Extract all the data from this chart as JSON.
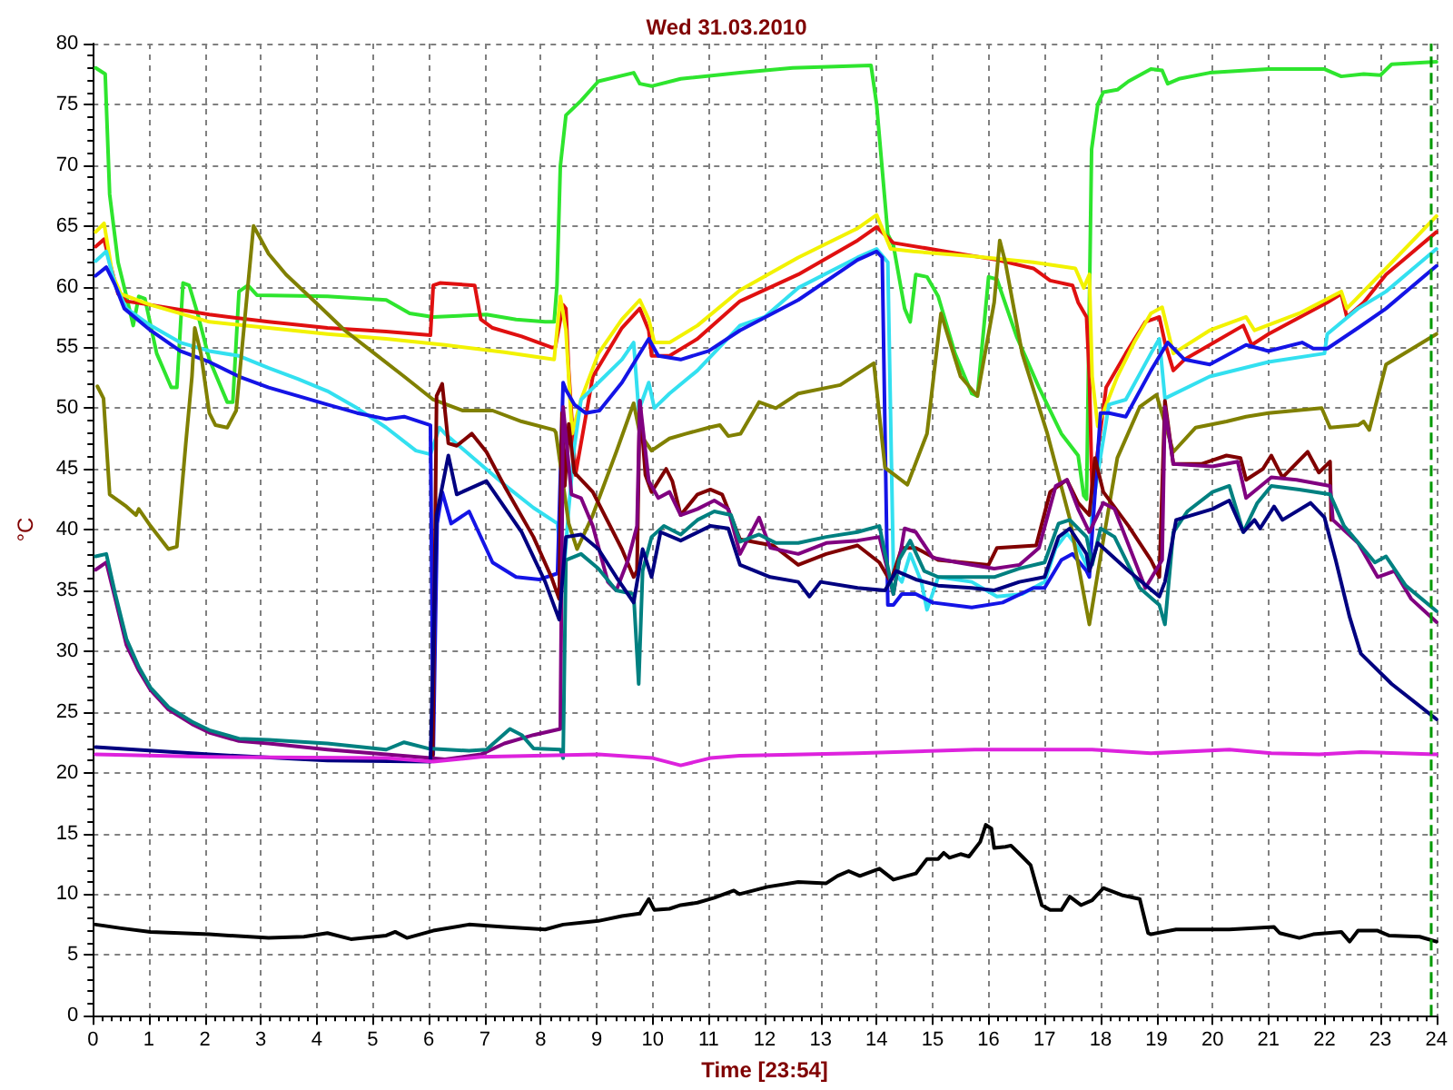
{
  "chart_data": {
    "type": "line",
    "title": "Wed 31.03.2010",
    "xlabel": "Time [23:54]",
    "ylabel": "°C",
    "xlim": [
      0,
      24
    ],
    "xticks": [
      0,
      1,
      2,
      3,
      4,
      5,
      6,
      7,
      8,
      9,
      10,
      11,
      12,
      13,
      14,
      15,
      16,
      17,
      18,
      19,
      20,
      21,
      22,
      23,
      24
    ],
    "ylim": [
      0,
      80
    ],
    "yticks": [
      0,
      5,
      10,
      15,
      20,
      25,
      30,
      35,
      40,
      45,
      50,
      55,
      60,
      65,
      70,
      75,
      80
    ],
    "grid": true,
    "marker": "none",
    "ref_lines": [
      {
        "axis": "x",
        "value": 23.9,
        "color": "#009900",
        "line_style": "dashed"
      }
    ],
    "series": [
      {
        "color": "#2ee52e",
        "x": [
          0.05,
          0.22,
          0.3,
          0.45,
          0.6,
          0.72,
          0.82,
          0.93,
          1.14,
          1.4,
          1.5,
          1.61,
          1.72,
          1.87,
          2.08,
          2.4,
          2.5,
          2.61,
          2.77,
          2.93,
          4.19,
          5.24,
          5.66,
          6.08,
          7.03,
          7.56,
          8.08,
          8.24,
          8.29,
          8.35,
          8.45,
          8.72,
          9.03,
          9.66,
          9.77,
          9.98,
          10.5,
          11.56,
          12.5,
          13.9,
          14.0,
          14.2,
          14.3,
          14.5,
          14.6,
          14.7,
          14.9,
          15.1,
          15.4,
          15.7,
          15.8,
          16.0,
          16.15,
          16.5,
          16.9,
          17.3,
          17.6,
          17.7,
          17.75,
          17.84,
          17.95,
          18.05,
          18.3,
          18.5,
          18.9,
          19.1,
          19.2,
          19.4,
          19.95,
          21,
          22,
          22.3,
          22.7,
          23,
          23.2,
          24
        ],
        "values": [
          78,
          77.5,
          67.6,
          62,
          59.2,
          56.8,
          59.2,
          59,
          54.5,
          51.7,
          51.7,
          60.3,
          60.1,
          57.8,
          54,
          50.5,
          50.5,
          59.6,
          60.1,
          59.3,
          59.2,
          58.9,
          57.8,
          57.5,
          57.7,
          57.3,
          57.1,
          57.1,
          60.1,
          69.9,
          74.1,
          75.3,
          76.9,
          77.6,
          76.7,
          76.5,
          77.1,
          77.6,
          78,
          78.2,
          75,
          64.3,
          63.4,
          58.2,
          57.1,
          61,
          60.8,
          59.2,
          54.5,
          51.2,
          51,
          60.8,
          60.6,
          55.9,
          51.7,
          47.9,
          46.1,
          42.8,
          42.5,
          71.3,
          75,
          76,
          76.2,
          76.9,
          77.9,
          77.8,
          76.7,
          77.1,
          77.6,
          77.9,
          77.9,
          77.3,
          77.5,
          77.4,
          78.3,
          78.5
        ]
      },
      {
        "color": "#e01010",
        "x": [
          0.05,
          0.2,
          0.3,
          0.45,
          0.6,
          1.03,
          2.08,
          3.14,
          4.19,
          5.24,
          6.03,
          6.08,
          6.2,
          6.82,
          6.93,
          7.14,
          7.66,
          8.19,
          8.26,
          8.4,
          8.45,
          8.5,
          8.62,
          8.93,
          9.45,
          9.77,
          9.93,
          9.98,
          10.3,
          10.8,
          11.56,
          12.6,
          13.66,
          14.0,
          14.3,
          15.1,
          16.15,
          16.8,
          17.1,
          17.5,
          17.6,
          17.75,
          17.8,
          17.85,
          18.1,
          18.45,
          18.8,
          19.05,
          19.15,
          19.3,
          19.5,
          19.95,
          20.55,
          20.7,
          21.0,
          22.05,
          22.3,
          22.4,
          22.7,
          23.1,
          24
        ],
        "values": [
          63.3,
          63.9,
          62,
          59.4,
          58.8,
          58.5,
          57.7,
          57.1,
          56.6,
          56.3,
          56,
          60.1,
          60.3,
          60.1,
          57.3,
          56.6,
          55.9,
          55,
          55,
          58.5,
          58.2,
          53.1,
          44.5,
          52.6,
          56.6,
          58.2,
          56.4,
          54.3,
          54.3,
          55.7,
          58.8,
          61,
          63.8,
          64.9,
          63.6,
          63,
          62.2,
          61.5,
          60.5,
          60.1,
          58.7,
          57.5,
          52.6,
          43,
          51.7,
          54.5,
          57.1,
          57.5,
          55.4,
          53.1,
          54,
          55.2,
          56.8,
          55.2,
          56.1,
          58.7,
          59.4,
          57.5,
          58.7,
          61,
          64.5
        ]
      },
      {
        "color": "#f2f200",
        "x": [
          0.05,
          0.2,
          0.35,
          0.5,
          1.03,
          2.08,
          3.14,
          4.19,
          5.24,
          6.29,
          7.35,
          8.24,
          8.35,
          8.45,
          8.56,
          8.72,
          9.03,
          9.45,
          9.77,
          9.93,
          10.03,
          10.3,
          10.8,
          11.56,
          12.6,
          13.66,
          14.0,
          14.25,
          14.65,
          15.7,
          16.8,
          17.55,
          17.7,
          17.8,
          17.85,
          17.95,
          18.3,
          18.6,
          18.9,
          19.1,
          19.3,
          19.95,
          20.6,
          20.75,
          21.55,
          22.3,
          22.4,
          23.1,
          24
        ],
        "values": [
          64.5,
          65.2,
          61,
          59.4,
          58.5,
          57.1,
          56.6,
          56.1,
          55.7,
          55.2,
          54.6,
          54,
          59.2,
          56.4,
          47.9,
          50.7,
          54.5,
          57.3,
          58.9,
          57.3,
          55.4,
          55.4,
          56.8,
          59.7,
          62.4,
          64.8,
          65.9,
          63.1,
          62.9,
          62.5,
          62,
          61.5,
          59.9,
          61,
          52.6,
          48.5,
          52.6,
          55.4,
          57.8,
          58.3,
          54.5,
          56.4,
          57.5,
          56.4,
          57.8,
          59.6,
          58.2,
          61.5,
          65.8
        ]
      },
      {
        "color": "#33e0f0",
        "x": [
          0.05,
          0.24,
          0.4,
          0.6,
          1.03,
          1.56,
          2.08,
          2.61,
          3.14,
          3.66,
          4.19,
          4.72,
          5.24,
          5.77,
          6.03,
          6.19,
          6.29,
          6.82,
          7.35,
          7.87,
          8.3,
          8.4,
          8.5,
          8.6,
          8.72,
          9.03,
          9.45,
          9.66,
          9.75,
          9.93,
          10.03,
          10.3,
          10.8,
          11.56,
          12.0,
          12.6,
          13.66,
          14.0,
          14.2,
          14.3,
          14.45,
          14.6,
          14.8,
          14.9,
          15.1,
          15.7,
          16.15,
          16.6,
          17.0,
          17.2,
          17.4,
          17.6,
          17.8,
          17.85,
          18.15,
          18.45,
          18.9,
          19.05,
          19.15,
          19.95,
          21.0,
          22.0,
          22.05,
          22.6,
          23.1,
          24
        ],
        "values": [
          62.1,
          62.9,
          60.1,
          58.2,
          56.8,
          55.4,
          54.7,
          54.3,
          53.3,
          52.4,
          51.4,
          50,
          48.4,
          46.5,
          46.2,
          48.4,
          47.9,
          45.8,
          43.7,
          41.8,
          40.5,
          35.7,
          41.7,
          46.8,
          50.7,
          52.1,
          54,
          55.4,
          49.8,
          52.1,
          50,
          51.2,
          53.1,
          56.8,
          57.5,
          59.9,
          62.4,
          63.1,
          62,
          36.6,
          35.7,
          38,
          35.7,
          33.4,
          36.1,
          35.7,
          34.5,
          34.7,
          35.7,
          38.5,
          39.7,
          38.5,
          36.6,
          41.7,
          50.3,
          50.7,
          54.5,
          55.7,
          50.8,
          52.6,
          53.8,
          54.5,
          56.1,
          58.2,
          59.6,
          63.1
        ]
      },
      {
        "color": "#1414e6",
        "x": [
          0.05,
          0.24,
          0.4,
          0.56,
          1.03,
          1.56,
          2.08,
          2.61,
          3.14,
          3.66,
          4.19,
          4.72,
          5.24,
          5.56,
          6.03,
          6.08,
          6.15,
          6.24,
          6.4,
          6.72,
          7.14,
          7.56,
          7.98,
          8.3,
          8.4,
          8.45,
          8.6,
          8.8,
          9.05,
          9.45,
          9.93,
          10.1,
          10.5,
          11.0,
          11.56,
          12.6,
          13.66,
          14.0,
          14.1,
          14.2,
          14.3,
          14.45,
          14.7,
          15.0,
          15.7,
          16.25,
          16.8,
          17.0,
          17.3,
          17.5,
          17.75,
          17.8,
          17.85,
          18.0,
          18.15,
          18.45,
          18.9,
          19.2,
          19.5,
          19.95,
          20.6,
          21.0,
          21.6,
          21.8,
          22.05,
          22.6,
          23.1,
          24
        ],
        "values": [
          60.9,
          61.6,
          60.1,
          58.2,
          56.4,
          54.7,
          53.8,
          52.6,
          51.7,
          51,
          50.3,
          49.6,
          49.1,
          49.3,
          48.6,
          21.5,
          40.5,
          43.1,
          40.5,
          41.5,
          37.3,
          36.1,
          35.9,
          36.4,
          52.1,
          51.5,
          50.3,
          49.6,
          49.8,
          52.1,
          55.7,
          54.3,
          54,
          54.7,
          56.4,
          58.9,
          62.2,
          62.9,
          62.4,
          33.8,
          33.8,
          34.7,
          34.7,
          34,
          33.6,
          34,
          35.2,
          35.2,
          37.5,
          38,
          36.6,
          36.1,
          39.6,
          49.6,
          49.6,
          49.3,
          53.1,
          55.4,
          54,
          53.6,
          55.2,
          54.7,
          55.4,
          54.9,
          54.9,
          56.6,
          58.2,
          61.7
        ]
      },
      {
        "color": "#808000",
        "x": [
          0.08,
          0.19,
          0.3,
          0.6,
          0.77,
          0.82,
          1.03,
          1.35,
          1.5,
          1.66,
          1.77,
          1.82,
          1.93,
          2.08,
          2.19,
          2.4,
          2.56,
          2.87,
          3.14,
          3.45,
          3.98,
          4.5,
          5.03,
          5.56,
          6.08,
          6.61,
          7.14,
          7.66,
          8.24,
          8.27,
          8.5,
          8.65,
          8.93,
          9.35,
          9.66,
          9.77,
          9.98,
          10.3,
          10.6,
          11.0,
          11.2,
          11.35,
          11.57,
          11.9,
          12.2,
          12.6,
          13.35,
          13.95,
          14.15,
          14.55,
          14.9,
          15.15,
          15.5,
          15.8,
          16.1,
          16.2,
          16.3,
          16.6,
          17.05,
          17.45,
          17.8,
          18.0,
          18.3,
          18.7,
          19.0,
          19.3,
          19.7,
          20.25,
          20.6,
          21.0,
          21.95,
          22.1,
          22.6,
          22.7,
          22.8,
          23.1,
          24
        ],
        "values": [
          51.8,
          50.8,
          42.9,
          41.9,
          41.2,
          41.7,
          40.3,
          38.4,
          38.6,
          47.1,
          52.6,
          56.6,
          54.5,
          49.6,
          48.6,
          48.4,
          49.8,
          65,
          62.7,
          61,
          58.7,
          56.4,
          54.5,
          52.6,
          50.7,
          49.8,
          49.8,
          48.9,
          48.2,
          48,
          40.5,
          38.4,
          41.2,
          46.4,
          50.4,
          47.9,
          46.5,
          47.5,
          47.9,
          48.4,
          48.6,
          47.7,
          47.9,
          50.5,
          50,
          51.2,
          51.9,
          53.7,
          45.1,
          43.7,
          47.9,
          57.8,
          52.6,
          51,
          58.7,
          63.8,
          62,
          54.5,
          47.9,
          40.9,
          32.2,
          37.8,
          45.9,
          50.1,
          51.1,
          46.4,
          48.4,
          48.9,
          49.3,
          49.6,
          50,
          48.4,
          48.6,
          48.9,
          48.2,
          53.6,
          56.1
        ]
      },
      {
        "color": "#800000",
        "x": [
          6.07,
          6.14,
          6.24,
          6.35,
          6.5,
          6.77,
          7.03,
          7.35,
          7.87,
          8.19,
          8.33,
          8.38,
          8.43,
          8.5,
          8.6,
          8.93,
          9.45,
          9.66,
          9.72,
          9.77,
          9.87,
          9.98,
          10.24,
          10.35,
          10.5,
          10.8,
          11.03,
          11.24,
          11.45,
          11.56,
          11.9,
          12.15,
          12.6,
          13.1,
          13.66,
          14.05,
          14.25,
          14.45,
          14.7,
          15.1,
          15.55,
          16.0,
          16.15,
          16.85,
          17.1,
          17.4,
          17.6,
          17.8,
          17.9,
          18.05,
          18.5,
          18.9,
          19.05,
          19.15,
          19.3,
          19.8,
          20.25,
          20.5,
          20.6,
          20.9,
          21.05,
          21.25,
          21.7,
          21.9,
          22.1,
          22.12
        ],
        "values": [
          21,
          51,
          52,
          47.1,
          46.9,
          47.9,
          46.4,
          43.6,
          39.4,
          36.1,
          34.3,
          49.6,
          43.6,
          48.7,
          44.7,
          43.1,
          38.4,
          36.1,
          36.6,
          50.6,
          44.5,
          43.1,
          45,
          44,
          41.2,
          42.9,
          43.3,
          42.9,
          40.5,
          39.2,
          38.9,
          38.7,
          37.1,
          38,
          38.7,
          37.3,
          35.7,
          38.5,
          38.5,
          37.5,
          37.3,
          37.1,
          38.5,
          38.7,
          43.1,
          44.1,
          42.2,
          41.2,
          45.9,
          43.1,
          40.3,
          37.5,
          36.1,
          50.6,
          45.4,
          45.4,
          46.1,
          45.9,
          44.1,
          45,
          46.1,
          44.3,
          46.4,
          44.7,
          45.6,
          40.8
        ]
      },
      {
        "color": "#800080",
        "x": [
          0.05,
          0.24,
          0.4,
          0.6,
          0.82,
          1.03,
          1.35,
          1.77,
          2.08,
          2.61,
          3.14,
          4.19,
          5.24,
          6.03,
          6.29,
          6.93,
          7.35,
          7.87,
          8.35,
          8.4,
          8.55,
          8.72,
          8.93,
          9.2,
          9.35,
          9.56,
          9.72,
          9.77,
          9.93,
          10.1,
          10.3,
          10.5,
          10.8,
          11.1,
          11.35,
          11.56,
          11.9,
          12.1,
          12.6,
          13.1,
          13.66,
          14.05,
          14.3,
          14.5,
          14.7,
          15.0,
          15.45,
          16.1,
          16.55,
          16.9,
          17.2,
          17.4,
          17.6,
          17.8,
          18.05,
          18.25,
          18.8,
          19.1,
          19.15,
          19.3,
          20.0,
          20.45,
          20.6,
          21.05,
          21.5,
          22.1,
          22.15,
          22.6,
          22.95,
          23.25,
          23.55,
          24
        ],
        "values": [
          36.7,
          37.3,
          34.3,
          30.5,
          28.4,
          26.8,
          25.2,
          24,
          23.3,
          22.6,
          22.4,
          21.9,
          21.5,
          21.2,
          21.1,
          21.5,
          22.4,
          23.1,
          23.6,
          50.1,
          42.9,
          42.6,
          40.3,
          35.7,
          35,
          37.5,
          40.3,
          50.6,
          44,
          42.6,
          43.1,
          41.2,
          41.7,
          42.4,
          41.7,
          38,
          41,
          38.5,
          38,
          38.9,
          39.1,
          39.4,
          34.7,
          40.1,
          39.8,
          37.7,
          37.3,
          36.8,
          37.1,
          38.5,
          43.6,
          44.1,
          41.7,
          39.8,
          42.2,
          41.7,
          35.2,
          37.5,
          50.1,
          45.4,
          45.2,
          45.6,
          42.6,
          44.3,
          44.1,
          43.6,
          40.8,
          38.9,
          36.1,
          36.6,
          34.3,
          32.4
        ]
      },
      {
        "color": "#008080",
        "x": [
          0.05,
          0.24,
          0.4,
          0.6,
          0.82,
          1.03,
          1.35,
          1.77,
          2.08,
          2.61,
          3.14,
          4.19,
          5.24,
          5.56,
          5.98,
          6.72,
          7.03,
          7.45,
          7.66,
          7.87,
          8.35,
          8.4,
          8.45,
          8.72,
          9.03,
          9.35,
          9.66,
          9.75,
          9.82,
          9.98,
          10.2,
          10.5,
          10.8,
          11.1,
          11.4,
          11.56,
          11.9,
          12.2,
          12.6,
          13.1,
          13.66,
          14.05,
          14.3,
          14.4,
          14.6,
          14.85,
          15.1,
          15.55,
          16.1,
          16.55,
          17.0,
          17.25,
          17.45,
          17.75,
          17.85,
          18.0,
          18.25,
          18.7,
          19.05,
          19.15,
          19.3,
          19.55,
          20.0,
          20.3,
          20.55,
          20.8,
          21.05,
          21.55,
          22.1,
          22.35,
          22.9,
          23.1,
          23.45,
          24
        ],
        "values": [
          37.8,
          38,
          34.7,
          31,
          28.7,
          27,
          25.4,
          24.2,
          23.5,
          22.8,
          22.7,
          22.4,
          21.9,
          22.5,
          22,
          21.8,
          21.9,
          23.6,
          23.1,
          22,
          21.9,
          21.2,
          37.5,
          38,
          36.8,
          35,
          34.7,
          27.3,
          36.6,
          39.4,
          40.3,
          39.6,
          40.8,
          41.5,
          41.2,
          39,
          39.6,
          38.9,
          38.9,
          39.4,
          39.8,
          40.3,
          34.7,
          37.5,
          39.1,
          36.6,
          36.1,
          36.1,
          36.1,
          36.8,
          37.3,
          40.5,
          40.8,
          39.4,
          37.1,
          40.1,
          39.4,
          35.2,
          33.8,
          32.2,
          39.8,
          41.5,
          43.1,
          43.6,
          39.8,
          42.2,
          43.6,
          43.3,
          42.9,
          40.3,
          37.3,
          37.8,
          35.4,
          33.3
        ]
      },
      {
        "color": "#000080",
        "x": [
          0.05,
          2.08,
          4.19,
          6.03,
          6.14,
          6.35,
          6.5,
          7.03,
          7.66,
          8.08,
          8.33,
          8.45,
          8.72,
          9.03,
          9.35,
          9.66,
          9.82,
          9.98,
          10.14,
          10.5,
          11.03,
          11.35,
          11.56,
          12.1,
          12.6,
          12.8,
          13.0,
          13.66,
          14.15,
          14.35,
          14.7,
          15.1,
          15.7,
          16.1,
          16.55,
          17.0,
          17.25,
          17.45,
          17.75,
          17.8,
          17.95,
          18.5,
          19.05,
          19.15,
          19.35,
          20.0,
          20.3,
          20.55,
          20.75,
          20.85,
          21.1,
          21.25,
          21.75,
          22.0,
          22.2,
          22.45,
          22.65,
          23.2,
          24
        ],
        "values": [
          22.1,
          21.5,
          21,
          20.9,
          41.2,
          46.1,
          42.9,
          44,
          39.8,
          35.7,
          32.6,
          39.4,
          39.6,
          38.4,
          36.1,
          34,
          38.4,
          36.1,
          39.8,
          39.1,
          40.3,
          40.1,
          37.1,
          36.1,
          35.7,
          34.5,
          35.7,
          35.2,
          35,
          36.6,
          35.9,
          35.4,
          35.2,
          35,
          35.7,
          36.1,
          39.4,
          40.1,
          38,
          36.6,
          38.9,
          36.6,
          34.5,
          35.7,
          40.8,
          41.7,
          42.4,
          39.8,
          40.8,
          40.1,
          41.9,
          40.8,
          42.2,
          41,
          37.5,
          32.8,
          29.8,
          27.3,
          24.4
        ]
      },
      {
        "color": "#dd22dd",
        "x": [
          0.05,
          2.08,
          5.24,
          6.08,
          6.93,
          9.03,
          10.0,
          10.5,
          11.03,
          11.55,
          13.65,
          15.75,
          16.8,
          17.85,
          18.9,
          20.3,
          21.05,
          21.9,
          22.65,
          24
        ],
        "values": [
          21.5,
          21.3,
          21.2,
          20.9,
          21.3,
          21.5,
          21.2,
          20.6,
          21.2,
          21.4,
          21.6,
          21.9,
          21.9,
          21.9,
          21.6,
          21.9,
          21.6,
          21.5,
          21.7,
          21.5
        ]
      },
      {
        "color": "#000000",
        "x": [
          0.05,
          0.5,
          1.03,
          2.08,
          3.14,
          3.77,
          4.19,
          4.61,
          5.24,
          5.4,
          5.61,
          6.08,
          6.72,
          7.35,
          8.08,
          8.4,
          9.03,
          9.45,
          9.77,
          9.93,
          10.03,
          10.3,
          10.5,
          10.8,
          11.1,
          11.45,
          11.55,
          12.05,
          12.6,
          13.1,
          13.3,
          13.5,
          13.7,
          14.05,
          14.3,
          14.7,
          14.9,
          15.1,
          15.2,
          15.3,
          15.5,
          15.65,
          15.85,
          15.95,
          16.05,
          16.1,
          16.3,
          16.4,
          16.6,
          16.75,
          16.95,
          17.1,
          17.3,
          17.45,
          17.65,
          17.85,
          18.05,
          18.4,
          18.7,
          18.85,
          18.9,
          19.35,
          20.3,
          21.1,
          21.2,
          21.55,
          21.8,
          22.3,
          22.45,
          22.6,
          22.95,
          23.15,
          23.7,
          24
        ],
        "values": [
          7.5,
          7.2,
          6.9,
          6.7,
          6.4,
          6.5,
          6.8,
          6.3,
          6.6,
          6.9,
          6.4,
          7,
          7.5,
          7.3,
          7.1,
          7.5,
          7.8,
          8.2,
          8.4,
          9.6,
          8.7,
          8.8,
          9.1,
          9.3,
          9.7,
          10.3,
          10,
          10.6,
          11,
          10.9,
          11.5,
          11.9,
          11.5,
          12.1,
          11.2,
          11.7,
          12.9,
          12.9,
          13.4,
          13,
          13.3,
          13.1,
          14.3,
          15.7,
          15.4,
          13.8,
          13.9,
          14,
          13.1,
          12.4,
          9.1,
          8.7,
          8.7,
          9.8,
          9.1,
          9.5,
          10.5,
          9.9,
          9.6,
          6.8,
          6.7,
          7.1,
          7.1,
          7.3,
          6.8,
          6.4,
          6.7,
          6.9,
          6.1,
          7,
          7,
          6.6,
          6.5,
          6.1
        ]
      }
    ]
  }
}
